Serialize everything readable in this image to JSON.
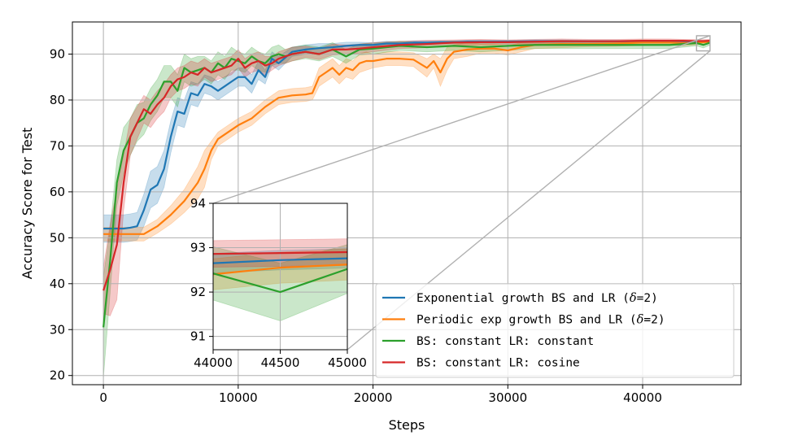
{
  "chart_data": {
    "type": "line",
    "title": "",
    "xlabel": "Steps",
    "ylabel": "Accuracy Score for Test",
    "xlim": [
      -2300,
      47300
    ],
    "ylim": [
      18,
      97
    ],
    "xticks": [
      0,
      10000,
      20000,
      30000,
      40000
    ],
    "xtick_labels": [
      "0",
      "10000",
      "20000",
      "30000",
      "40000"
    ],
    "yticks": [
      20,
      30,
      40,
      50,
      60,
      70,
      80,
      90
    ],
    "ytick_labels": [
      "20",
      "30",
      "40",
      "50",
      "60",
      "70",
      "80",
      "90"
    ],
    "grid": true,
    "legend_position": "lower-right",
    "series": [
      {
        "name": "Exponential growth BS and LR (δ=2)",
        "legend_parts": [
          "Exponential growth BS and LR (",
          "δ",
          "=2)"
        ],
        "color": "#1f77b4",
        "x": [
          0,
          500,
          1000,
          1500,
          2000,
          2500,
          3000,
          3500,
          4000,
          4500,
          5000,
          5500,
          6000,
          6500,
          7000,
          7500,
          8000,
          8500,
          9000,
          9500,
          10000,
          10500,
          11000,
          11500,
          12000,
          12500,
          13000,
          14000,
          15000,
          16000,
          17000,
          18000,
          19000,
          20000,
          21000,
          22000,
          23000,
          24000,
          25000,
          26000,
          27000,
          28000,
          29000,
          30000,
          32000,
          34000,
          36000,
          38000,
          40000,
          42000,
          43000,
          44000,
          44500,
          45000
        ],
        "y": [
          52,
          52,
          52,
          52,
          52.2,
          52.5,
          56,
          60.5,
          61.5,
          65,
          72,
          77.5,
          77,
          81.5,
          81,
          83.5,
          83,
          82,
          83,
          84,
          85,
          85,
          83.5,
          86.5,
          85,
          89,
          88,
          90.5,
          91,
          91.3,
          91.5,
          91.8,
          92,
          92,
          92.3,
          92.3,
          92.5,
          92.5,
          92.6,
          92.6,
          92.7,
          92.7,
          92.7,
          92.7,
          92.8,
          92.8,
          92.8,
          92.8,
          92.8,
          92.8,
          92.8,
          92.7,
          92.75,
          92.8
        ],
        "band": [
          3,
          3,
          3,
          3,
          3,
          3,
          3.5,
          4,
          4,
          4,
          3.5,
          3,
          3,
          2.5,
          2.5,
          2,
          2,
          2,
          2,
          2,
          2,
          2,
          2,
          2,
          1.5,
          1.5,
          1.5,
          1,
          1,
          1,
          0.8,
          0.8,
          0.6,
          0.5,
          0.5,
          0.4,
          0.4,
          0.4,
          0.3,
          0.3,
          0.3,
          0.3,
          0.3,
          0.3,
          0.3,
          0.3,
          0.2,
          0.2,
          0.2,
          0.2,
          0.2,
          0.2,
          0.2,
          0.2
        ]
      },
      {
        "name": "Periodic exp growth BS and LR (δ=2)",
        "legend_parts": [
          "Periodic exp growth BS and LR (",
          "δ",
          "=2)"
        ],
        "color": "#ff7f0e",
        "x": [
          0,
          1000,
          2000,
          3000,
          4000,
          5000,
          6000,
          7000,
          7500,
          8000,
          8500,
          9000,
          9500,
          10000,
          11000,
          12000,
          13000,
          14000,
          15000,
          15500,
          16000,
          16500,
          17000,
          17500,
          18000,
          18500,
          19000,
          19500,
          20000,
          21000,
          22000,
          23000,
          24000,
          24500,
          25000,
          25500,
          26000,
          27000,
          28000,
          29000,
          30000,
          31000,
          32000,
          34000,
          36000,
          38000,
          40000,
          42000,
          43000,
          44000,
          44500,
          45000
        ],
        "y": [
          50.8,
          50.8,
          50.8,
          50.8,
          52.5,
          55,
          58,
          62,
          65,
          69,
          71.5,
          72.5,
          73.5,
          74.5,
          76,
          78.5,
          80.5,
          81,
          81.2,
          81.5,
          85,
          86,
          87,
          85.5,
          87,
          86.5,
          88,
          88.5,
          88.5,
          89,
          89,
          88.8,
          87,
          88.5,
          86,
          89,
          90.5,
          91,
          91.2,
          91.2,
          90.8,
          91.5,
          92,
          92.2,
          92.2,
          92.3,
          92.5,
          92.5,
          92.4,
          92.4,
          92.6,
          92.65
        ],
        "band": [
          1.5,
          1.5,
          1.5,
          1.5,
          1.5,
          2,
          2.5,
          3.5,
          4,
          2,
          1.5,
          1.5,
          1.5,
          1.5,
          1.5,
          1.5,
          1.5,
          1.5,
          1.5,
          1.5,
          2,
          2,
          2,
          2,
          2,
          2,
          2,
          2,
          1.5,
          1.5,
          1.5,
          1.5,
          2,
          1.5,
          3,
          2.5,
          1.5,
          1.5,
          1,
          1,
          1,
          1,
          0.8,
          0.8,
          0.6,
          0.6,
          0.6,
          0.5,
          0.6,
          0.35,
          0.35,
          0.35
        ]
      },
      {
        "name": "BS: constant   LR: constant",
        "legend_parts": [
          "BS: constant   LR: constant"
        ],
        "color": "#2ca02c",
        "x": [
          0,
          500,
          1000,
          1500,
          2000,
          2500,
          3000,
          3500,
          4000,
          4500,
          5000,
          5500,
          6000,
          6500,
          7000,
          7500,
          8000,
          8500,
          9000,
          9500,
          10000,
          10500,
          11000,
          11500,
          12000,
          12500,
          13000,
          13500,
          14000,
          15000,
          16000,
          17000,
          18000,
          19000,
          20000,
          22000,
          24000,
          26000,
          28000,
          30000,
          32000,
          34000,
          36000,
          38000,
          40000,
          42000,
          43000,
          44000,
          44500,
          45000
        ],
        "y": [
          30.5,
          45,
          62,
          69,
          72,
          75,
          76,
          79,
          81,
          84,
          84,
          82,
          87,
          86,
          86.5,
          87,
          86,
          88,
          87,
          89,
          88.5,
          88,
          89.5,
          88.5,
          88,
          89.5,
          90,
          89.5,
          90,
          90.5,
          90,
          91,
          89.5,
          91,
          91.2,
          91.8,
          91.5,
          91.8,
          91.5,
          91.8,
          92,
          92,
          92,
          92,
          92,
          92,
          92.2,
          92.4,
          92,
          92.5
        ],
        "band": [
          11,
          7,
          5,
          5,
          4,
          4,
          3.5,
          3.5,
          3.5,
          3.5,
          3.5,
          3.5,
          3,
          3,
          3,
          2.5,
          2.5,
          2.5,
          2.5,
          2.5,
          2,
          2,
          2,
          2,
          2,
          2,
          2,
          1.5,
          1.5,
          1.5,
          1.5,
          1.5,
          1.5,
          1.2,
          1.2,
          1,
          1,
          1,
          1,
          1,
          0.8,
          0.8,
          0.8,
          0.8,
          0.8,
          0.8,
          0.7,
          0.6,
          0.65,
          0.55
        ]
      },
      {
        "name": "BS: constant   LR: cosine",
        "legend_parts": [
          "BS: constant   LR: cosine"
        ],
        "color": "#d62728",
        "x": [
          0,
          500,
          1000,
          1500,
          2000,
          2500,
          3000,
          3500,
          4000,
          4500,
          5000,
          5500,
          6000,
          6500,
          7000,
          7500,
          8000,
          8500,
          9000,
          9500,
          10000,
          10500,
          11000,
          11500,
          12000,
          12500,
          13000,
          13500,
          14000,
          15000,
          16000,
          17000,
          18000,
          19000,
          20000,
          22000,
          24000,
          26000,
          28000,
          30000,
          32000,
          34000,
          36000,
          38000,
          40000,
          42000,
          43000,
          44000,
          44500,
          45000
        ],
        "y": [
          38.5,
          43,
          48.5,
          62,
          72,
          75,
          78,
          77,
          79,
          80.5,
          83,
          84.5,
          85,
          86,
          85.5,
          87,
          86,
          86.5,
          87,
          87.5,
          89,
          87,
          88,
          88.5,
          87.5,
          88,
          89,
          89.5,
          90,
          90.5,
          90,
          91,
          91,
          91.2,
          91.5,
          92,
          92.2,
          92.5,
          92.6,
          92.6,
          92.7,
          92.8,
          92.8,
          92.8,
          92.9,
          92.9,
          92.9,
          92.85,
          92.85,
          92.9
        ],
        "band": [
          5,
          10,
          12,
          6,
          4,
          3.5,
          3,
          3,
          3,
          3,
          2.5,
          2.5,
          2.5,
          2.5,
          2.5,
          2,
          2,
          2,
          2,
          2,
          2,
          2,
          2,
          2,
          2,
          1.5,
          1.5,
          1.5,
          1.5,
          1.2,
          1.2,
          1.2,
          1,
          1,
          1,
          0.8,
          0.8,
          0.6,
          0.6,
          0.5,
          0.5,
          0.5,
          0.4,
          0.4,
          0.4,
          0.4,
          0.3,
          0.3,
          0.3,
          0.3
        ]
      }
    ],
    "inset": {
      "xlim": [
        44000,
        45000
      ],
      "ylim": [
        90.7,
        94
      ],
      "xticks": [
        44000,
        44500,
        45000
      ],
      "xtick_labels": [
        "44000",
        "44500",
        "45000"
      ],
      "yticks": [
        91,
        92,
        93,
        94
      ],
      "ytick_labels": [
        "91",
        "92",
        "93",
        "94"
      ],
      "series": [
        {
          "color": "#1f77b4",
          "x": [
            44000,
            44500,
            45000
          ],
          "y": [
            92.65,
            92.72,
            92.76
          ],
          "band": [
            0.22,
            0.22,
            0.22
          ]
        },
        {
          "color": "#ff7f0e",
          "x": [
            44000,
            44500,
            45000
          ],
          "y": [
            92.4,
            92.55,
            92.62
          ],
          "band": [
            0.35,
            0.35,
            0.35
          ]
        },
        {
          "color": "#2ca02c",
          "x": [
            44000,
            44500,
            45000
          ],
          "y": [
            92.42,
            92.0,
            92.52
          ],
          "band": [
            0.6,
            0.65,
            0.55
          ]
        },
        {
          "color": "#d62728",
          "x": [
            44000,
            44500,
            45000
          ],
          "y": [
            92.86,
            92.88,
            92.9
          ],
          "band": [
            0.3,
            0.3,
            0.3
          ]
        }
      ]
    }
  }
}
